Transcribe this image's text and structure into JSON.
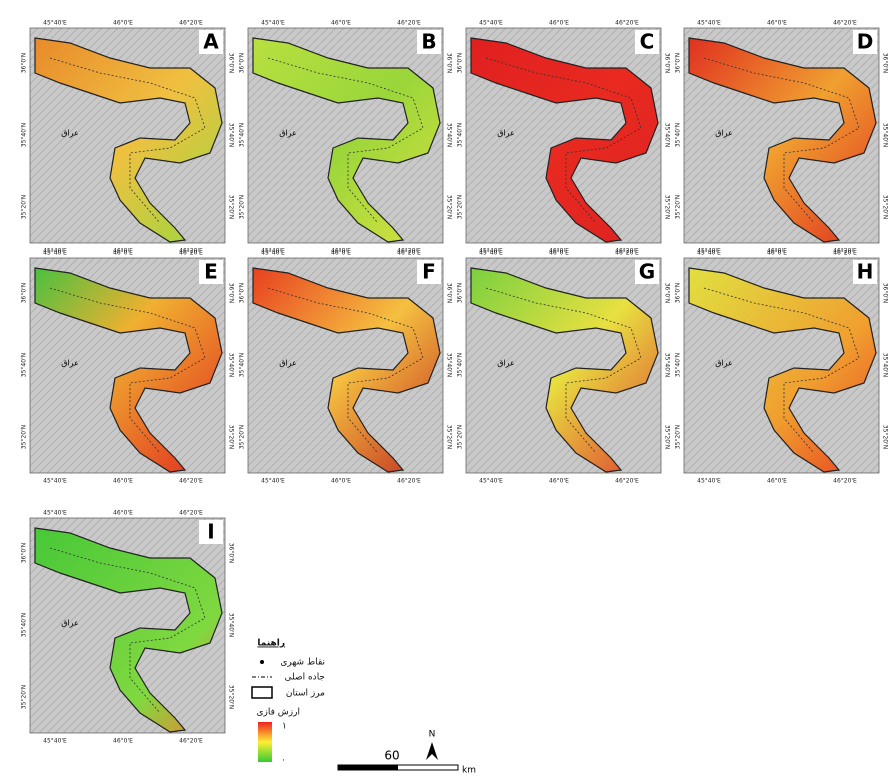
{
  "panels": [
    {
      "label": "A"
    },
    {
      "label": "B"
    },
    {
      "label": "C"
    },
    {
      "label": "D"
    },
    {
      "label": "E"
    },
    {
      "label": "F"
    },
    {
      "label": "G"
    },
    {
      "label": "H"
    },
    {
      "label": "I"
    }
  ],
  "lon_ticks": [
    "45°40'E",
    "46°0'E",
    "46°20'E"
  ],
  "lat_ticks": [
    "36°0'N",
    "35°40'N",
    "35°20'N"
  ],
  "country_label": "عراق",
  "legend": {
    "title": "راهنما",
    "items": [
      "نقاط شهری",
      "جاده اصلی",
      "مرز استان"
    ],
    "fuzzy_title": "ارزش فازی",
    "fuzzy_high": "١",
    "fuzzy_low": "."
  },
  "scale": {
    "distance": "60",
    "unit": "km",
    "north": "N"
  }
}
